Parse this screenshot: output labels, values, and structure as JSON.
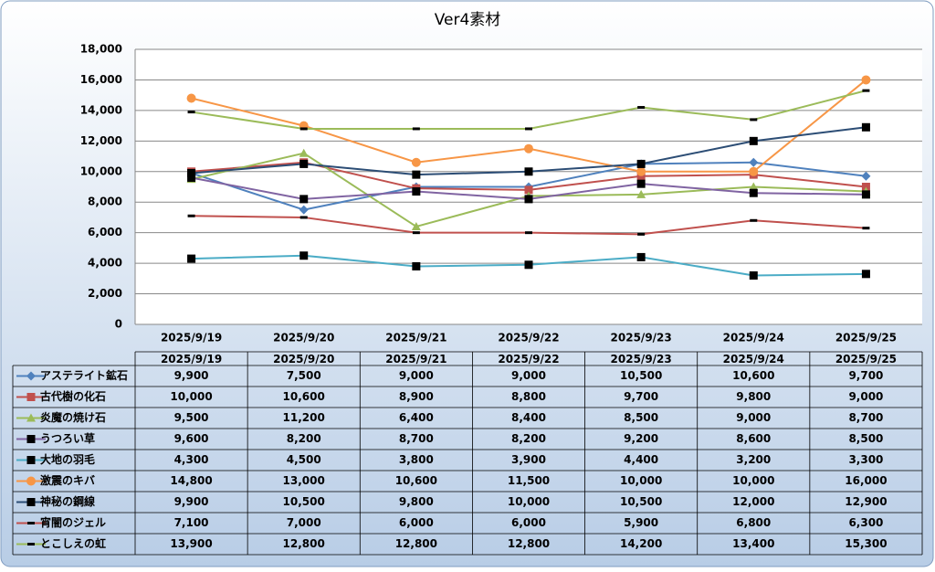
{
  "chart_data": {
    "type": "line",
    "title": "Ver4素材",
    "categories": [
      "2025/9/19",
      "2025/9/20",
      "2025/9/21",
      "2025/9/22",
      "2025/9/23",
      "2025/9/24",
      "2025/9/25"
    ],
    "ylim": [
      0,
      18000
    ],
    "yticks": [
      0,
      {
        "value": 2000,
        "label": "2,000"
      },
      {
        "value": 4000,
        "label": "4,000"
      },
      {
        "value": 6000,
        "label": "6,000"
      },
      {
        "value": 8000,
        "label": "8,000"
      },
      {
        "value": 10000,
        "label": "10,000"
      },
      {
        "value": 12000,
        "label": "12,000"
      },
      {
        "value": 14000,
        "label": "14,000"
      },
      {
        "value": 16000,
        "label": "16,000"
      },
      {
        "value": 18000,
        "label": "18,000"
      }
    ],
    "grid": true,
    "series": [
      {
        "name": "アステライト鉱石",
        "color": "#4f81bd",
        "marker": "diamond",
        "marker_color": "#4f81bd",
        "values": [
          9900,
          7500,
          9000,
          9000,
          10500,
          10600,
          9700
        ],
        "value_labels": [
          "9,900",
          "7,500",
          "9,000",
          "9,000",
          "10,500",
          "10,600",
          "9,700"
        ]
      },
      {
        "name": "古代樹の化石",
        "color": "#c0504d",
        "marker": "square",
        "marker_color": "#c0504d",
        "values": [
          10000,
          10600,
          8900,
          8800,
          9700,
          9800,
          9000
        ],
        "value_labels": [
          "10,000",
          "10,600",
          "8,900",
          "8,800",
          "9,700",
          "9,800",
          "9,000"
        ]
      },
      {
        "name": "炎魔の焼け石",
        "color": "#9bbb59",
        "marker": "triangle",
        "marker_color": "#9bbb59",
        "values": [
          9500,
          11200,
          6400,
          8400,
          8500,
          9000,
          8700
        ],
        "value_labels": [
          "9,500",
          "11,200",
          "6,400",
          "8,400",
          "8,500",
          "9,000",
          "8,700"
        ]
      },
      {
        "name": "うつろい草",
        "color": "#8064a2",
        "marker": "square",
        "marker_color": "#000000",
        "values": [
          9600,
          8200,
          8700,
          8200,
          9200,
          8600,
          8500
        ],
        "value_labels": [
          "9,600",
          "8,200",
          "8,700",
          "8,200",
          "9,200",
          "8,600",
          "8,500"
        ]
      },
      {
        "name": "大地の羽毛",
        "color": "#4bacc6",
        "marker": "square",
        "marker_color": "#000000",
        "values": [
          4300,
          4500,
          3800,
          3900,
          4400,
          3200,
          3300
        ],
        "value_labels": [
          "4,300",
          "4,500",
          "3,800",
          "3,900",
          "4,400",
          "3,200",
          "3,300"
        ]
      },
      {
        "name": "激震のキバ",
        "color": "#f79646",
        "marker": "circle",
        "marker_color": "#f79646",
        "values": [
          14800,
          13000,
          10600,
          11500,
          10000,
          10000,
          16000
        ],
        "value_labels": [
          "14,800",
          "13,000",
          "10,600",
          "11,500",
          "10,000",
          "10,000",
          "16,000"
        ]
      },
      {
        "name": "神秘の鋼線",
        "color": "#2c4d75",
        "marker": "square",
        "marker_color": "#000000",
        "values": [
          9900,
          10500,
          9800,
          10000,
          10500,
          12000,
          12900
        ],
        "value_labels": [
          "9,900",
          "10,500",
          "9,800",
          "10,000",
          "10,500",
          "12,000",
          "12,900"
        ]
      },
      {
        "name": "宵闇のジェル",
        "color": "#c0504d",
        "marker": "dash",
        "marker_color": "#000000",
        "values": [
          7100,
          7000,
          6000,
          6000,
          5900,
          6800,
          6300
        ],
        "value_labels": [
          "7,100",
          "7,000",
          "6,000",
          "6,000",
          "5,900",
          "6,800",
          "6,300"
        ]
      },
      {
        "name": "とこしえの虹",
        "color": "#9bbb59",
        "marker": "dash",
        "marker_color": "#000000",
        "values": [
          13900,
          12800,
          12800,
          12800,
          14200,
          13400,
          15300
        ],
        "value_labels": [
          "13,900",
          "12,800",
          "12,800",
          "12,800",
          "14,200",
          "13,400",
          "15,300"
        ]
      }
    ]
  }
}
